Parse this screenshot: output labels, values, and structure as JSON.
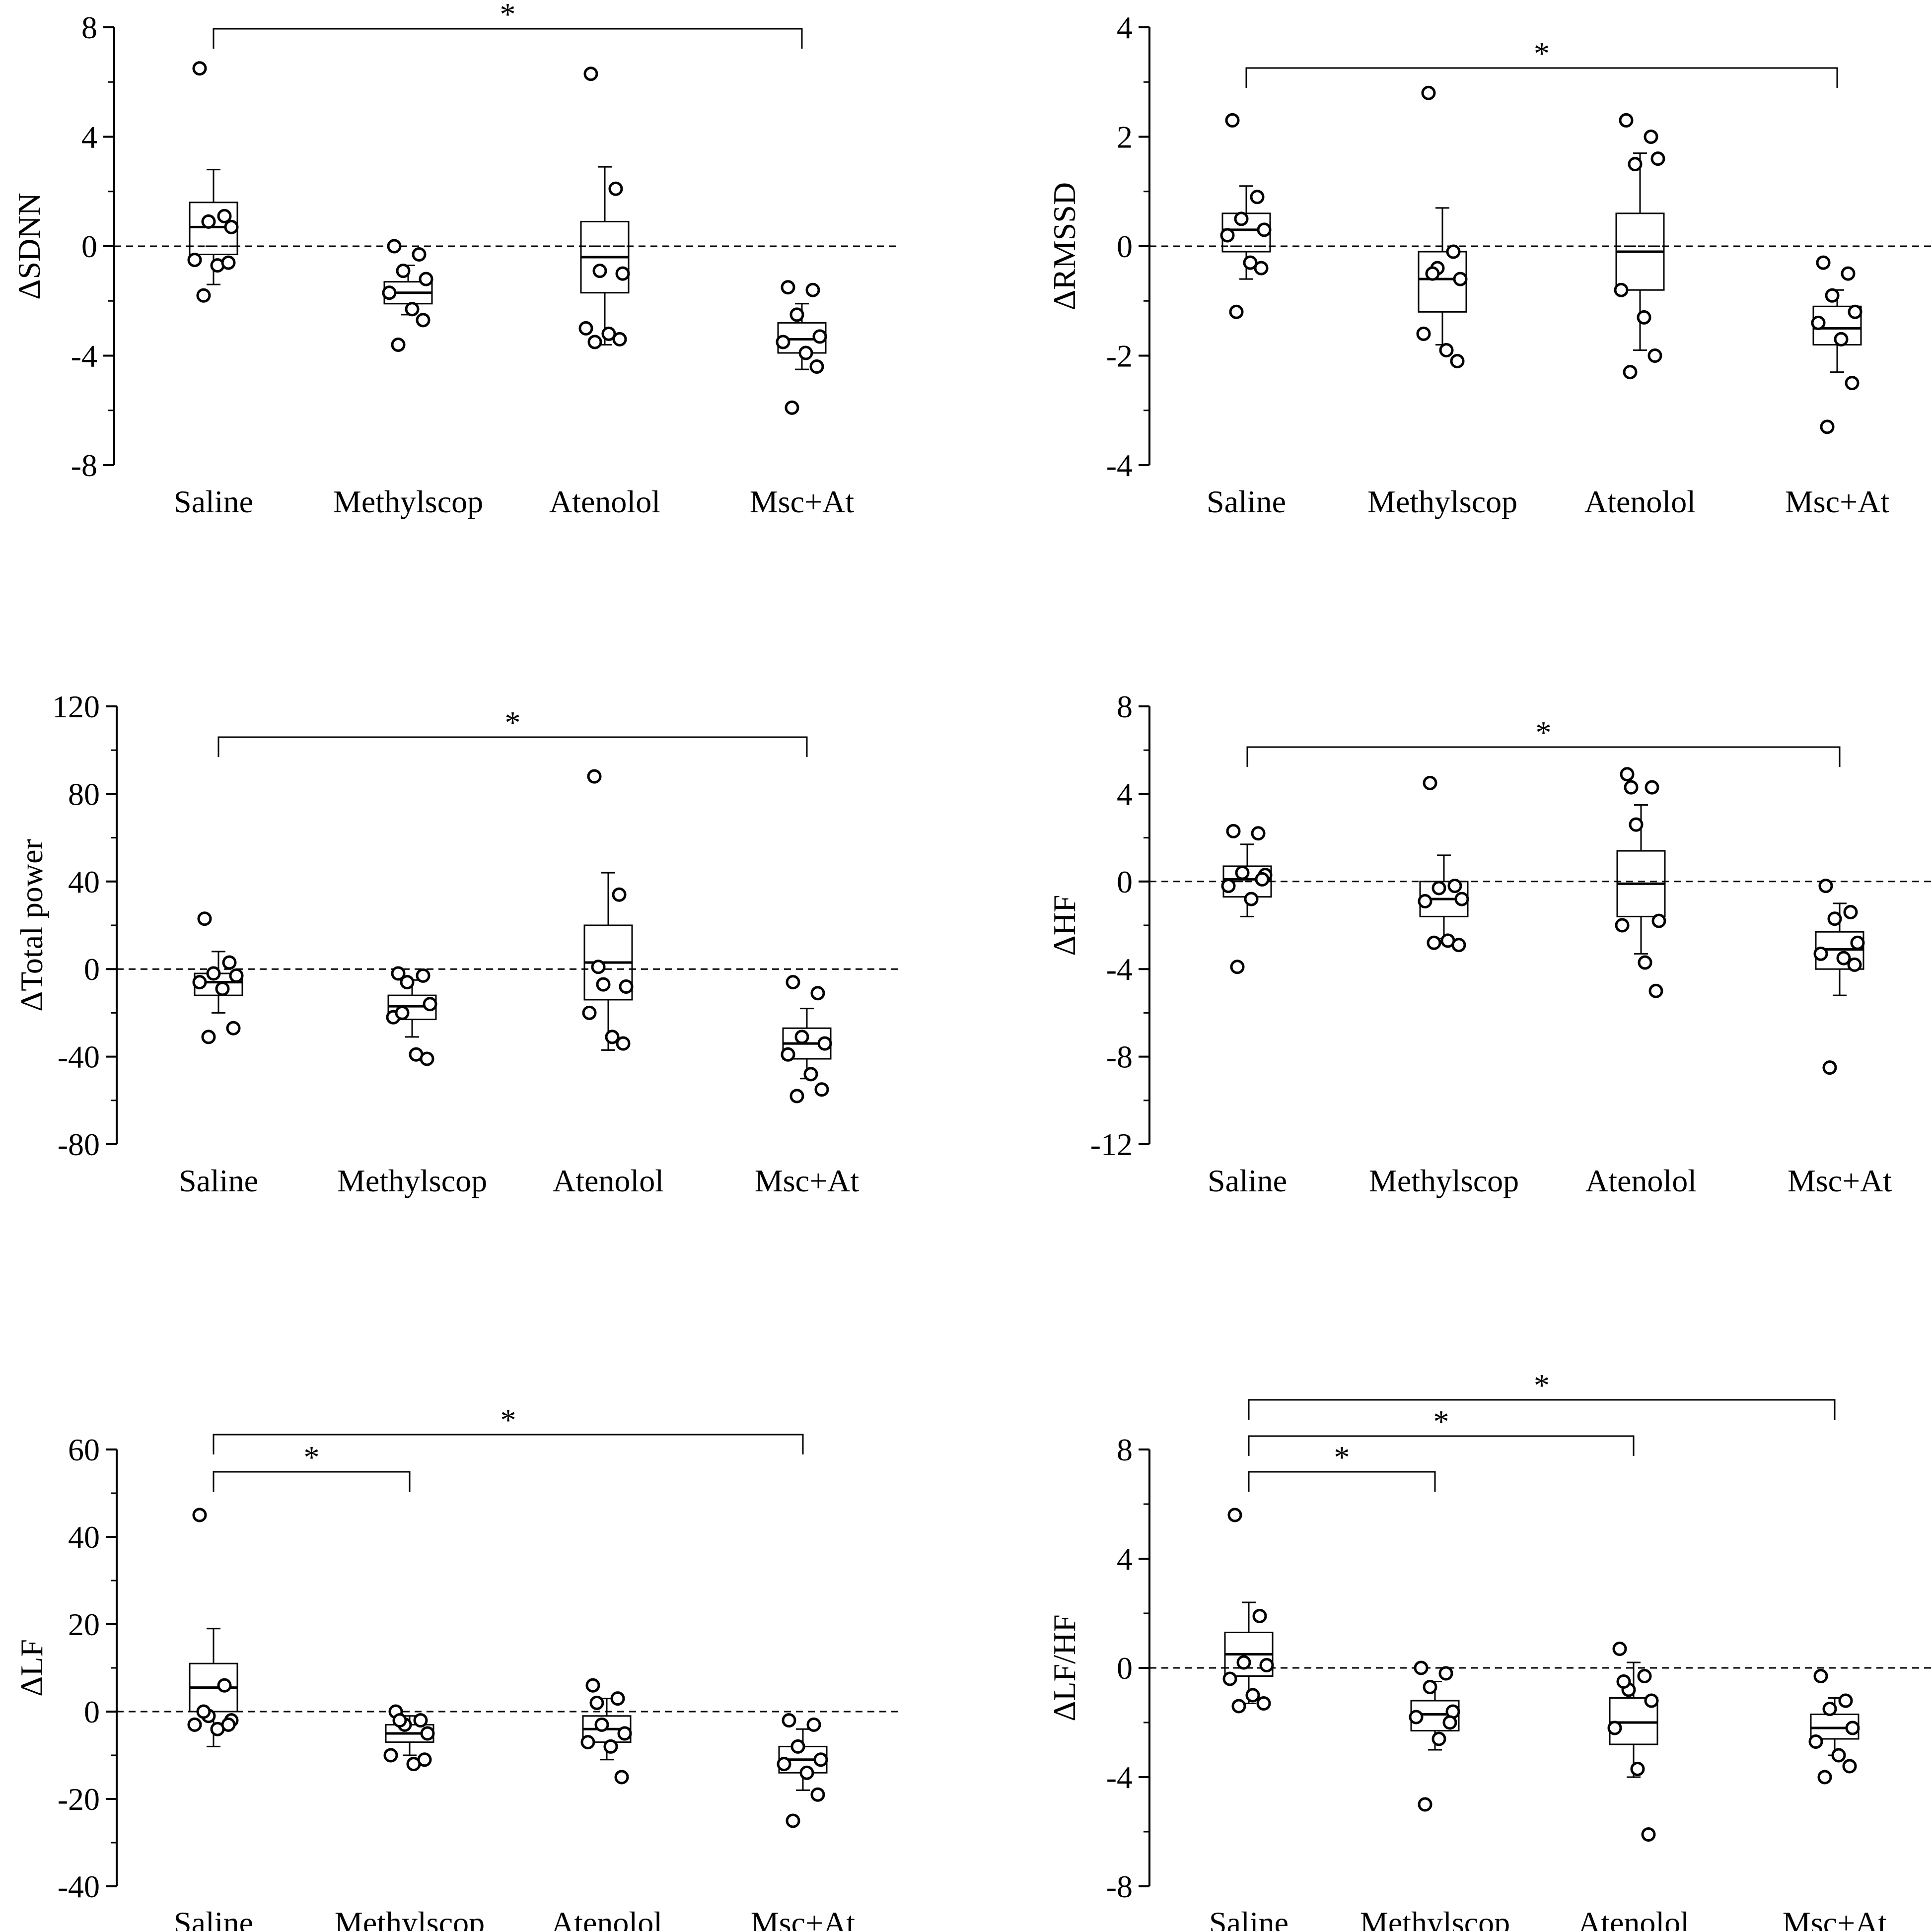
{
  "figure": {
    "background": "#ffffff",
    "ink": "#000000"
  },
  "chart_data": [
    {
      "id": "sdnn",
      "type": "box",
      "ylabel": "ΔSDNN",
      "categories": [
        "Saline",
        "Methylscop",
        "Atenolol",
        "Msc+At"
      ],
      "ylim": [
        -8,
        8
      ],
      "yticks": [
        8,
        4,
        0,
        -4,
        -8
      ],
      "reference_line": 0,
      "boxes": [
        {
          "q1": -0.3,
          "median": 0.7,
          "mean": 0.0,
          "q3": 1.6,
          "whisker_low": -1.4,
          "whisker_high": 2.8
        },
        {
          "q1": -2.1,
          "median": -1.7,
          "mean": -1.7,
          "q3": -1.3,
          "whisker_low": -2.5,
          "whisker_high": -0.7
        },
        {
          "q1": -1.7,
          "median": -0.4,
          "mean": 0.0,
          "q3": 0.9,
          "whisker_low": -3.6,
          "whisker_high": 2.9
        },
        {
          "q1": -3.9,
          "median": -3.4,
          "mean": -3.4,
          "q3": -2.8,
          "whisker_low": -4.5,
          "whisker_high": -2.1
        }
      ],
      "points": [
        [
          6.5,
          1.1,
          0.9,
          0.7,
          -0.5,
          -0.7,
          -0.6,
          -1.8
        ],
        [
          0.0,
          -0.3,
          -0.9,
          -1.2,
          -1.7,
          -2.3,
          -2.7,
          -3.6
        ],
        [
          6.3,
          2.1,
          -0.9,
          -1.0,
          -3.0,
          -3.2,
          -3.4,
          -3.5
        ],
        [
          -1.5,
          -1.6,
          -2.5,
          -3.3,
          -3.5,
          -3.9,
          -4.4,
          -5.9
        ]
      ],
      "significance": [
        {
          "from": "Saline",
          "to": "Msc+At",
          "label": "*"
        }
      ]
    },
    {
      "id": "rmssd",
      "type": "box",
      "ylabel": "ΔRMSSD",
      "categories": [
        "Saline",
        "Methylscop",
        "Atenolol",
        "Msc+At"
      ],
      "ylim": [
        -4,
        4
      ],
      "yticks": [
        4,
        2,
        0,
        -2,
        -4
      ],
      "reference_line": 0,
      "boxes": [
        {
          "q1": -0.1,
          "median": 0.3,
          "mean": 0.0,
          "q3": 0.6,
          "whisker_low": -0.6,
          "whisker_high": 1.1
        },
        {
          "q1": -1.2,
          "median": -0.6,
          "mean": -0.6,
          "q3": -0.1,
          "whisker_low": -1.8,
          "whisker_high": 0.7
        },
        {
          "q1": -0.8,
          "median": -0.1,
          "mean": 0.0,
          "q3": 0.6,
          "whisker_low": -1.9,
          "whisker_high": 1.7
        },
        {
          "q1": -1.8,
          "median": -1.5,
          "mean": -1.5,
          "q3": -1.1,
          "whisker_low": -2.3,
          "whisker_high": -0.8
        }
      ],
      "points": [
        [
          2.3,
          0.9,
          0.5,
          0.3,
          0.2,
          -0.3,
          -0.4,
          -1.2
        ],
        [
          2.8,
          -0.1,
          -0.4,
          -0.6,
          -1.6,
          -1.9,
          -2.1,
          -0.5
        ],
        [
          2.3,
          2.0,
          1.5,
          1.6,
          -0.8,
          -1.3,
          -2.0,
          -2.3
        ],
        [
          -0.3,
          -0.5,
          -0.9,
          -1.2,
          -1.4,
          -1.7,
          -2.5,
          -3.3
        ]
      ],
      "significance": [
        {
          "from": "Saline",
          "to": "Msc+At",
          "label": "*"
        }
      ]
    },
    {
      "id": "total-power",
      "type": "box",
      "ylabel": "ΔTotal power",
      "categories": [
        "Saline",
        "Methylscop",
        "Atenolol",
        "Msc+At"
      ],
      "ylim": [
        -80,
        120
      ],
      "yticks": [
        120,
        80,
        40,
        0,
        -40,
        -80
      ],
      "reference_line": 0,
      "boxes": [
        {
          "q1": -12,
          "median": -6,
          "mean": -6,
          "q3": -2,
          "whisker_low": -20,
          "whisker_high": 8
        },
        {
          "q1": -23,
          "median": -17,
          "mean": -17,
          "q3": -12,
          "whisker_low": -31,
          "whisker_high": -5
        },
        {
          "q1": -14,
          "median": 3,
          "mean": 3,
          "q3": 20,
          "whisker_low": -37,
          "whisker_high": 44
        },
        {
          "q1": -41,
          "median": -34,
          "mean": -34,
          "q3": -27,
          "whisker_low": -50,
          "whisker_high": -18
        }
      ],
      "points": [
        [
          23,
          3,
          -2,
          -3,
          -6,
          -9,
          -27,
          -31
        ],
        [
          -2,
          -3,
          -6,
          -16,
          -22,
          -39,
          -41,
          -20
        ],
        [
          88,
          34,
          -7,
          -8,
          -20,
          -31,
          -34,
          1
        ],
        [
          -6,
          -11,
          -31,
          -34,
          -39,
          -48,
          -55,
          -58
        ]
      ],
      "significance": [
        {
          "from": "Saline",
          "to": "Msc+At",
          "label": "*"
        }
      ]
    },
    {
      "id": "hf",
      "type": "box",
      "ylabel": "ΔHF",
      "categories": [
        "Saline",
        "Methylscop",
        "Atenolol",
        "Msc+At"
      ],
      "ylim": [
        -12,
        8
      ],
      "yticks": [
        8,
        4,
        0,
        -4,
        -8,
        -12
      ],
      "reference_line": 0,
      "boxes": [
        {
          "q1": -0.7,
          "median": 0.1,
          "mean": 0.0,
          "q3": 0.7,
          "whisker_low": -1.6,
          "whisker_high": 1.7
        },
        {
          "q1": -1.6,
          "median": -0.8,
          "mean": -0.8,
          "q3": 0.0,
          "whisker_low": -2.6,
          "whisker_high": 1.2
        },
        {
          "q1": -1.6,
          "median": -0.1,
          "mean": -0.1,
          "q3": 1.4,
          "whisker_low": -3.3,
          "whisker_high": 3.5
        },
        {
          "q1": -4.0,
          "median": -3.1,
          "mean": -3.1,
          "q3": -2.3,
          "whisker_low": -5.2,
          "whisker_high": -1.0
        }
      ],
      "points": [
        [
          2.3,
          2.2,
          0.4,
          0.3,
          -0.2,
          -0.8,
          0.1,
          -3.9
        ],
        [
          4.5,
          -0.2,
          -0.3,
          -0.8,
          -0.9,
          -2.7,
          -2.9,
          -2.8
        ],
        [
          4.9,
          4.3,
          2.6,
          -1.8,
          -2.0,
          -3.7,
          -5.0,
          4.3
        ],
        [
          -0.2,
          -1.4,
          -1.7,
          -2.8,
          -3.3,
          -3.5,
          -3.8,
          -8.5
        ]
      ],
      "significance": [
        {
          "from": "Saline",
          "to": "Msc+At",
          "label": "*"
        }
      ]
    },
    {
      "id": "lf",
      "type": "box",
      "ylabel": "ΔLF",
      "categories": [
        "Saline",
        "Methylscop",
        "Atenolol",
        "Msc+At"
      ],
      "ylim": [
        -40,
        60
      ],
      "yticks": [
        60,
        40,
        20,
        0,
        -20,
        -40
      ],
      "reference_line": 0,
      "boxes": [
        {
          "q1": 0,
          "median": 5.5,
          "mean": 5.5,
          "q3": 11,
          "whisker_low": -8,
          "whisker_high": 19
        },
        {
          "q1": -7,
          "median": -5,
          "mean": -5,
          "q3": -3,
          "whisker_low": -10,
          "whisker_high": -1
        },
        {
          "q1": -7,
          "median": -4,
          "mean": -4,
          "q3": -1,
          "whisker_low": -11,
          "whisker_high": 3
        },
        {
          "q1": -14,
          "median": -11,
          "mean": -11,
          "q3": -8,
          "whisker_low": -18,
          "whisker_high": -4
        }
      ],
      "points": [
        [
          45,
          6,
          -1,
          -2,
          -3,
          -4,
          -3,
          0
        ],
        [
          0,
          -2,
          -3,
          -5,
          -10,
          -12,
          -11,
          -2
        ],
        [
          6,
          3,
          -3,
          -5,
          -7,
          -8,
          -15,
          2
        ],
        [
          -2,
          -3,
          -8,
          -11,
          -12,
          -14,
          -19,
          -25
        ]
      ],
      "significance": [
        {
          "from": "Saline",
          "to": "Methylscop",
          "label": "*"
        },
        {
          "from": "Saline",
          "to": "Msc+At",
          "label": "*"
        }
      ]
    },
    {
      "id": "lfhf",
      "type": "box",
      "ylabel": "ΔLF/HF",
      "categories": [
        "Saline",
        "Methylscop",
        "Atenolol",
        "Msc+At"
      ],
      "ylim": [
        -8,
        8
      ],
      "yticks": [
        8,
        4,
        0,
        -4,
        -8
      ],
      "reference_line": 0,
      "boxes": [
        {
          "q1": -0.3,
          "median": 0.5,
          "mean": 0.0,
          "q3": 1.3,
          "whisker_low": -1.3,
          "whisker_high": 2.4
        },
        {
          "q1": -2.3,
          "median": -1.7,
          "mean": -1.7,
          "q3": -1.2,
          "whisker_low": -3.0,
          "whisker_high": -0.5
        },
        {
          "q1": -2.8,
          "median": -2.0,
          "mean": -2.0,
          "q3": -1.1,
          "whisker_low": -4.0,
          "whisker_high": 0.2
        },
        {
          "q1": -2.6,
          "median": -2.2,
          "mean": -2.2,
          "q3": -1.7,
          "whisker_low": -3.2,
          "whisker_high": -1.1
        }
      ],
      "points": [
        [
          5.6,
          1.9,
          0.2,
          0.1,
          -0.4,
          -1.0,
          -1.3,
          -1.4
        ],
        [
          0.0,
          -0.2,
          -0.7,
          -1.6,
          -1.8,
          -2.6,
          -2.0,
          -5.0
        ],
        [
          0.7,
          -0.3,
          -0.8,
          -1.2,
          -2.2,
          -3.7,
          -6.1,
          -0.5
        ],
        [
          -0.3,
          -1.2,
          -1.5,
          -2.2,
          -2.7,
          -3.2,
          -3.6,
          -4.0
        ]
      ],
      "significance": [
        {
          "from": "Saline",
          "to": "Methylscop",
          "label": "*"
        },
        {
          "from": "Saline",
          "to": "Atenolol",
          "label": "*"
        },
        {
          "from": "Saline",
          "to": "Msc+At",
          "label": "*"
        }
      ]
    }
  ]
}
